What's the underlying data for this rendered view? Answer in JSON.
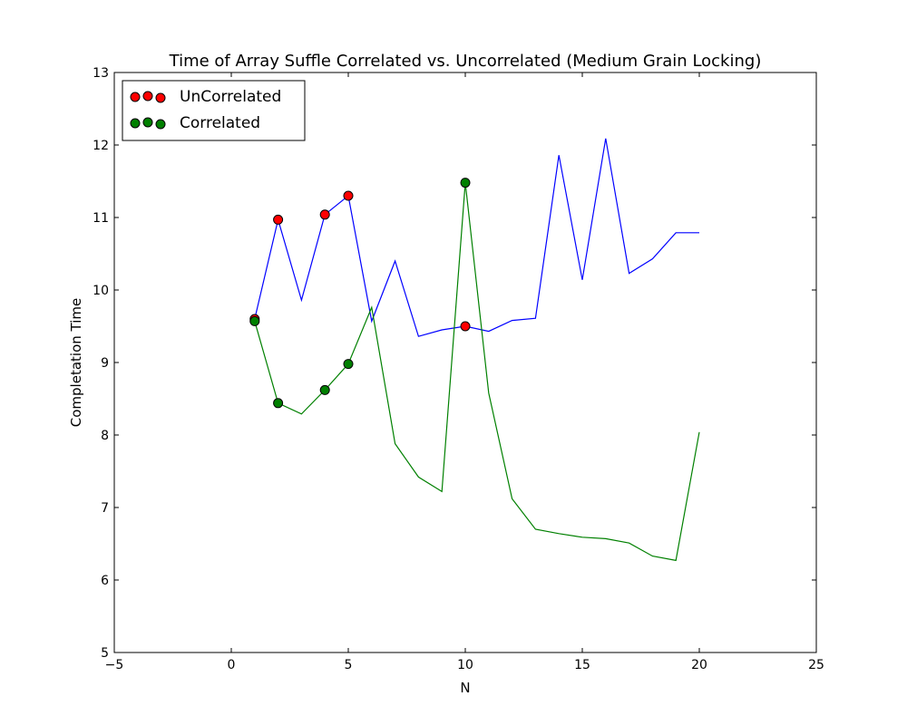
{
  "chart_data": {
    "type": "line",
    "title": "Time of Array Suffle Correlated vs. Uncorrelated (Medium Grain Locking)",
    "xlabel": "N",
    "ylabel": "Completation Time",
    "xlim": [
      -5,
      25
    ],
    "ylim": [
      5,
      13
    ],
    "xticks": [
      -5,
      0,
      5,
      10,
      15,
      20,
      25
    ],
    "yticks": [
      5,
      6,
      7,
      8,
      9,
      10,
      11,
      12,
      13
    ],
    "grid": false,
    "legend_position": "upper-left",
    "series": [
      {
        "name": "UnCorrelated",
        "line_color": "#0000ff",
        "marker_color": "#ff0000",
        "x": [
          1,
          2,
          3,
          4,
          5,
          6,
          7,
          8,
          9,
          10,
          11,
          12,
          13,
          14,
          15,
          16,
          17,
          18,
          19,
          20
        ],
        "y": [
          9.6,
          10.97,
          9.86,
          11.04,
          11.3,
          9.57,
          10.4,
          9.36,
          9.45,
          9.5,
          9.43,
          9.58,
          9.61,
          11.86,
          10.14,
          12.09,
          10.23,
          10.43,
          10.79,
          10.79
        ],
        "marker_x": [
          1,
          2,
          4,
          5,
          10
        ],
        "marker_y": [
          9.6,
          10.97,
          11.04,
          11.3,
          9.5
        ]
      },
      {
        "name": "Correlated",
        "line_color": "#008000",
        "marker_color": "#008000",
        "x": [
          1,
          2,
          3,
          4,
          5,
          6,
          7,
          8,
          9,
          10,
          11,
          12,
          13,
          14,
          15,
          16,
          17,
          18,
          19,
          20
        ],
        "y": [
          9.57,
          8.44,
          8.29,
          8.62,
          8.98,
          9.76,
          7.88,
          7.42,
          7.22,
          11.48,
          8.58,
          7.12,
          6.7,
          6.64,
          6.59,
          6.57,
          6.51,
          6.33,
          6.27,
          8.04
        ],
        "marker_x": [
          1,
          2,
          4,
          5,
          10
        ],
        "marker_y": [
          9.57,
          8.44,
          8.62,
          8.98,
          11.48
        ]
      }
    ]
  }
}
